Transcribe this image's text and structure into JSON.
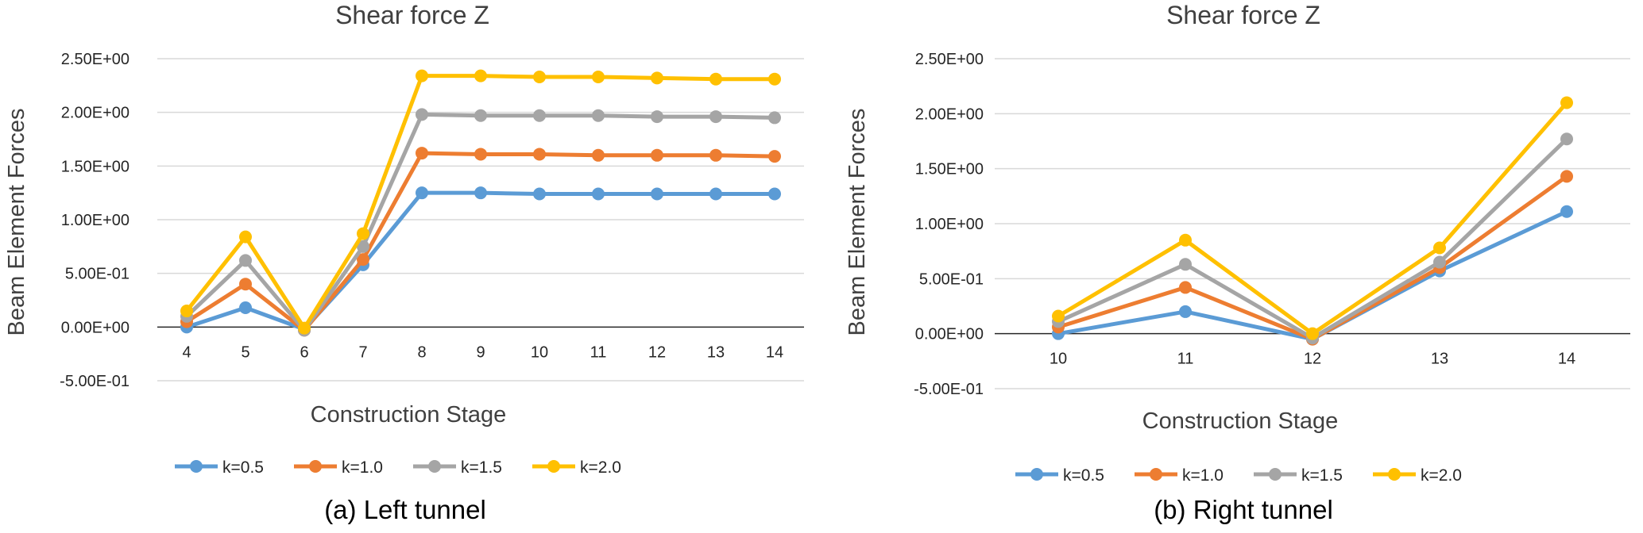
{
  "chart_data": [
    {
      "type": "line",
      "title": "Shear force Z",
      "xlabel": "Construction Stage",
      "ylabel": "Beam Element Forces",
      "caption": "(a) Left tunnel",
      "categories": [
        "4",
        "5",
        "6",
        "7",
        "8",
        "9",
        "10",
        "11",
        "12",
        "13",
        "14"
      ],
      "yticks": [
        "2.50E+00",
        "2.00E+00",
        "1.50E+00",
        "1.00E+00",
        "5.00E-01",
        "0.00E+00",
        "-5.00E-01"
      ],
      "ytick_values": [
        2.5,
        2.0,
        1.5,
        1.0,
        0.5,
        0.0,
        -0.5
      ],
      "ylim": [
        -0.5,
        2.5
      ],
      "grid": true,
      "legend": "bottom",
      "series": [
        {
          "name": "k=0.5",
          "color": "#5b9bd5",
          "values": [
            0.0,
            0.18,
            -0.02,
            0.58,
            1.25,
            1.25,
            1.24,
            1.24,
            1.24,
            1.24,
            1.24
          ]
        },
        {
          "name": "k=1.0",
          "color": "#ed7d31",
          "values": [
            0.05,
            0.4,
            -0.03,
            0.63,
            1.62,
            1.61,
            1.61,
            1.6,
            1.6,
            1.6,
            1.59
          ]
        },
        {
          "name": "k=1.5",
          "color": "#a5a5a5",
          "values": [
            0.1,
            0.62,
            -0.03,
            0.75,
            1.98,
            1.97,
            1.97,
            1.97,
            1.96,
            1.96,
            1.95
          ]
        },
        {
          "name": "k=2.0",
          "color": "#ffc000",
          "values": [
            0.15,
            0.84,
            -0.01,
            0.87,
            2.34,
            2.34,
            2.33,
            2.33,
            2.32,
            2.31,
            2.31
          ]
        }
      ]
    },
    {
      "type": "line",
      "title": "Shear force Z",
      "xlabel": "Construction Stage",
      "ylabel": "Beam Element Forces",
      "caption": "(b) Right tunnel",
      "categories": [
        "10",
        "11",
        "12",
        "13",
        "14"
      ],
      "yticks": [
        "2.50E+00",
        "2.00E+00",
        "1.50E+00",
        "1.00E+00",
        "5.00E-01",
        "0.00E+00",
        "-5.00E-01"
      ],
      "ytick_values": [
        2.5,
        2.0,
        1.5,
        1.0,
        0.5,
        0.0,
        -0.5
      ],
      "ylim": [
        -0.5,
        2.5
      ],
      "grid": true,
      "legend": "bottom",
      "series": [
        {
          "name": "k=0.5",
          "color": "#5b9bd5",
          "values": [
            0.0,
            0.2,
            -0.05,
            0.57,
            1.11
          ]
        },
        {
          "name": "k=1.0",
          "color": "#ed7d31",
          "values": [
            0.06,
            0.42,
            -0.05,
            0.6,
            1.43
          ]
        },
        {
          "name": "k=1.5",
          "color": "#a5a5a5",
          "values": [
            0.11,
            0.63,
            -0.04,
            0.65,
            1.77
          ]
        },
        {
          "name": "k=2.0",
          "color": "#ffc000",
          "values": [
            0.16,
            0.85,
            0.0,
            0.78,
            2.1
          ]
        }
      ]
    }
  ]
}
